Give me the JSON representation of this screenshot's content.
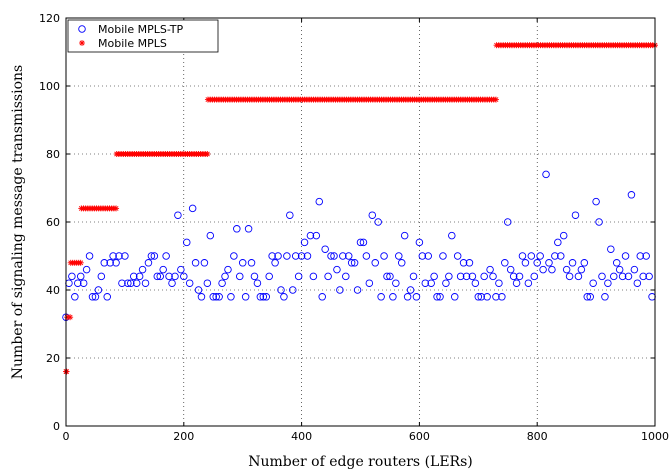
{
  "chart_data": {
    "type": "scatter",
    "title": "",
    "xlabel": "Number of edge routers (LERs)",
    "ylabel": "Number of signaling message transmissions",
    "xlim": [
      0,
      1000
    ],
    "ylim": [
      0,
      120
    ],
    "xticks": [
      0,
      200,
      400,
      600,
      800,
      1000
    ],
    "yticks": [
      0,
      20,
      40,
      60,
      80,
      100,
      120
    ],
    "grid": true,
    "legend_position": "top-left",
    "series": [
      {
        "name": "Mobile MPLS-TP",
        "marker": "circle",
        "color": "#0000ff",
        "x": [
          0,
          5,
          10,
          15,
          20,
          25,
          30,
          35,
          40,
          45,
          50,
          55,
          60,
          65,
          70,
          75,
          80,
          85,
          90,
          95,
          100,
          105,
          110,
          115,
          120,
          125,
          130,
          135,
          140,
          145,
          150,
          155,
          160,
          165,
          170,
          175,
          180,
          185,
          190,
          195,
          200,
          205,
          210,
          215,
          220,
          225,
          230,
          235,
          240,
          245,
          250,
          255,
          260,
          265,
          270,
          275,
          280,
          285,
          290,
          295,
          300,
          305,
          310,
          315,
          320,
          325,
          330,
          335,
          340,
          345,
          350,
          355,
          360,
          365,
          370,
          375,
          380,
          385,
          390,
          395,
          400,
          405,
          410,
          415,
          420,
          425,
          430,
          435,
          440,
          445,
          450,
          455,
          460,
          465,
          470,
          475,
          480,
          485,
          490,
          495,
          500,
          505,
          510,
          515,
          520,
          525,
          530,
          535,
          540,
          545,
          550,
          555,
          560,
          565,
          570,
          575,
          580,
          585,
          590,
          595,
          600,
          605,
          610,
          615,
          620,
          625,
          630,
          635,
          640,
          645,
          650,
          655,
          660,
          665,
          670,
          675,
          680,
          685,
          690,
          695,
          700,
          705,
          710,
          715,
          720,
          725,
          730,
          735,
          740,
          745,
          750,
          755,
          760,
          765,
          770,
          775,
          780,
          785,
          790,
          795,
          800,
          805,
          810,
          815,
          820,
          825,
          830,
          835,
          840,
          845,
          850,
          855,
          860,
          865,
          870,
          875,
          880,
          885,
          890,
          895,
          900,
          905,
          910,
          915,
          920,
          925,
          930,
          935,
          940,
          945,
          950,
          955,
          960,
          965,
          970,
          975,
          980,
          985,
          990,
          995
        ],
        "y": [
          32,
          42,
          44,
          38,
          42,
          44,
          42,
          46,
          50,
          38,
          38,
          40,
          44,
          48,
          38,
          48,
          50,
          48,
          50,
          42,
          50,
          42,
          42,
          44,
          42,
          44,
          46,
          42,
          48,
          50,
          50,
          44,
          44,
          46,
          50,
          44,
          42,
          44,
          62,
          46,
          44,
          54,
          42,
          64,
          48,
          40,
          38,
          48,
          42,
          56,
          38,
          38,
          38,
          42,
          44,
          46,
          38,
          50,
          58,
          44,
          48,
          38,
          58,
          48,
          44,
          42,
          38,
          38,
          38,
          44,
          50,
          48,
          50,
          40,
          38,
          50,
          62,
          40,
          50,
          44,
          50,
          54,
          50,
          56,
          44,
          56,
          66,
          38,
          52,
          44,
          50,
          50,
          46,
          40,
          50,
          44,
          50,
          48,
          48,
          40,
          54,
          54,
          50,
          42,
          62,
          48,
          60,
          38,
          50,
          44,
          44,
          38,
          42,
          50,
          48,
          56,
          38,
          40,
          44,
          38,
          54,
          50,
          42,
          50,
          42,
          44,
          38,
          38,
          50,
          42,
          44,
          56,
          38,
          50,
          44,
          48,
          44,
          48,
          44,
          42,
          38,
          38,
          44,
          38,
          46,
          44,
          38,
          42,
          38,
          48,
          60,
          46,
          44,
          42,
          44,
          50,
          48,
          42,
          50,
          44,
          48,
          50,
          46,
          74,
          48,
          46,
          50,
          54,
          50,
          56,
          46,
          44,
          48,
          62,
          44,
          46,
          48,
          38,
          38,
          42,
          66,
          60,
          44,
          38,
          42,
          52,
          44,
          48,
          46,
          44,
          50,
          44,
          68,
          46,
          42,
          50,
          44,
          50,
          44,
          38
        ]
      },
      {
        "name": "Mobile MPLS",
        "marker": "asterisk",
        "color": "#ff0000",
        "steps": [
          {
            "x_from": 0,
            "x_to": 1,
            "y": 16
          },
          {
            "x_from": 2,
            "x_to": 7,
            "y": 32
          },
          {
            "x_from": 8,
            "x_to": 25,
            "y": 48
          },
          {
            "x_from": 26,
            "x_to": 85,
            "y": 64
          },
          {
            "x_from": 86,
            "x_to": 240,
            "y": 80
          },
          {
            "x_from": 241,
            "x_to": 730,
            "y": 96
          },
          {
            "x_from": 731,
            "x_to": 1000,
            "y": 112
          }
        ]
      }
    ]
  }
}
